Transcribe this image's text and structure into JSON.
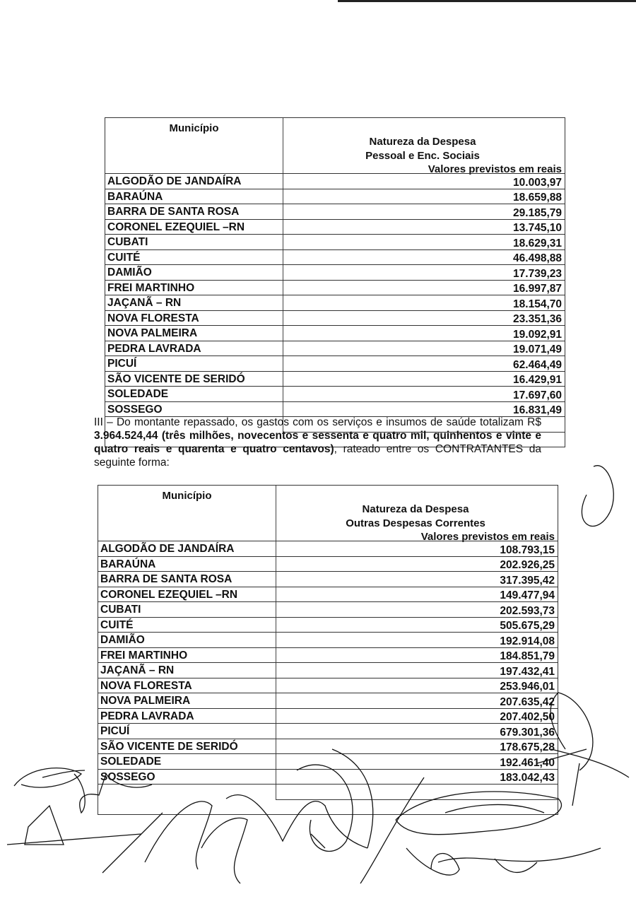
{
  "table1": {
    "col_municipio": "Município",
    "col_natureza_lines": [
      "Natureza da Despesa",
      "Pessoal e Enc. Sociais"
    ],
    "col_valores": "Valores previstos em reais",
    "municipios": [
      "ALGODÃO DE JANDAÍRA",
      "BARAÚNA",
      "BARRA DE SANTA ROSA",
      "CORONEL EZEQUIEL –RN",
      "CUBATI",
      "CUITÉ",
      "DAMIÃO",
      "FREI MARTINHO",
      "JAÇANÃ – RN",
      "NOVA FLORESTA",
      "NOVA PALMEIRA",
      "PEDRA LAVRADA",
      "PICUÍ",
      "SÃO VICENTE DE SERIDÓ",
      "SOLEDADE",
      "SOSSEGO"
    ],
    "valores": [
      "10.003,97",
      "18.659,88",
      "29.185,79",
      "13.745,10",
      "18.629,31",
      "46.498,88",
      "17.739,23",
      "16.997,87",
      "18.154,70",
      "23.351,36",
      "19.092,91",
      "19.071,49",
      "62.464,49",
      "16.429,91",
      "17.697,60",
      "16.831,49"
    ]
  },
  "paragraph": {
    "intro": "III – Do montante repassado, os gastos com os serviços e insumos de saúde totalizam R$ ",
    "bold": "3.964.524,44 (três milhões, novecentos e sessenta e quatro mil, quinhentos e vinte e quatro reais e quarenta e quatro centavos)",
    "outro": ", rateado entre os CONTRATANTES da seguinte forma:"
  },
  "table2": {
    "col_municipio": "Município",
    "col_natureza_lines": [
      "Natureza da Despesa",
      "Outras Despesas Correntes"
    ],
    "col_valores": "Valores previstos em reais",
    "municipios": [
      "ALGODÃO DE JANDAÍRA",
      "BARAÚNA",
      "BARRA DE SANTA ROSA",
      "CORONEL EZEQUIEL –RN",
      "CUBATI",
      "CUITÉ",
      "DAMIÃO",
      "FREI MARTINHO",
      "JAÇANÃ – RN",
      "NOVA FLORESTA",
      "NOVA PALMEIRA",
      "PEDRA LAVRADA",
      "PICUÍ",
      "SÃO VICENTE DE SERIDÓ",
      "SOLEDADE",
      "SOSSEGO"
    ],
    "valores": [
      "108.793,15",
      "202.926,25",
      "317.395,42",
      "149.477,94",
      "202.593,73",
      "505.675,29",
      "192.914,08",
      "184.851,79",
      "197.432,41",
      "253.946,01",
      "207.635,42",
      "207.402,50",
      "679.301,36",
      "178.675,28",
      "192.461,40",
      "183.042,43"
    ]
  }
}
